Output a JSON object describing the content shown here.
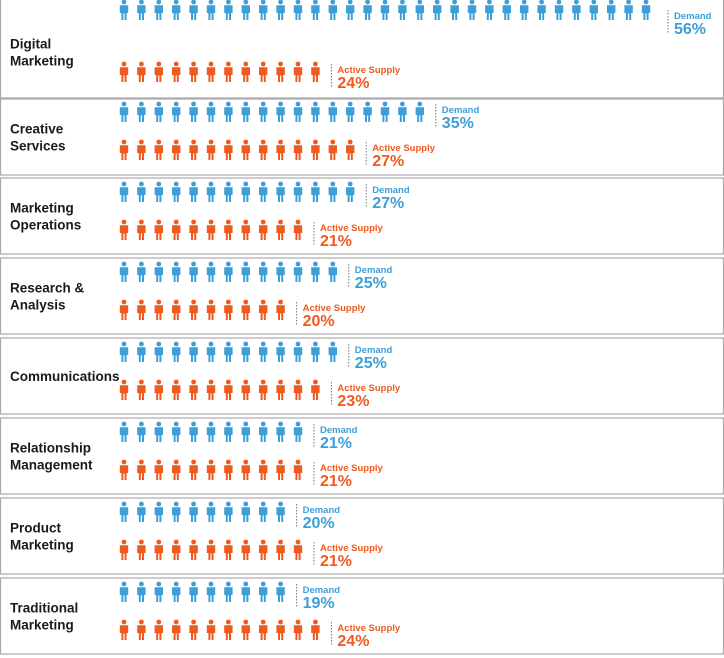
{
  "chart_data": {
    "type": "pictograph",
    "series": [
      {
        "name": "Demand",
        "color": "#3d9fd8"
      },
      {
        "name": "Active Supply",
        "color": "#ee5a1f"
      }
    ],
    "categories": [
      {
        "label": [
          "Digital",
          "Marketing"
        ],
        "demand": 56,
        "supply": 24
      },
      {
        "label": [
          "Creative",
          "Services"
        ],
        "demand": 35,
        "supply": 27
      },
      {
        "label": [
          "Marketing",
          "Operations"
        ],
        "demand": 27,
        "supply": 21
      },
      {
        "label": [
          "Research &",
          "Analysis"
        ],
        "demand": 25,
        "supply": 20
      },
      {
        "label": [
          "Communications"
        ],
        "demand": 25,
        "supply": 23
      },
      {
        "label": [
          "Relationship",
          "Management"
        ],
        "demand": 21,
        "supply": 21
      },
      {
        "label": [
          "Product",
          "Marketing"
        ],
        "demand": 20,
        "supply": 21
      },
      {
        "label": [
          "Traditional",
          "Marketing"
        ],
        "demand": 19,
        "supply": 24
      }
    ],
    "value_labels": {
      "demand": [
        "56%",
        "35%",
        "27%",
        "25%",
        "25%",
        "21%",
        "20%",
        "19%"
      ],
      "supply": [
        "24%",
        "27%",
        "21%",
        "20%",
        "23%",
        "21%",
        "21%",
        "24%"
      ]
    }
  }
}
